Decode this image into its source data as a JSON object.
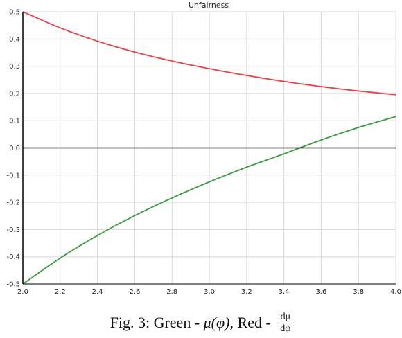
{
  "chart_data": {
    "type": "line",
    "title": "Unfairness",
    "xlim": [
      2.0,
      4.0
    ],
    "ylim": [
      -0.5,
      0.5
    ],
    "x_ticks": [
      2.0,
      2.2,
      2.4,
      2.6,
      2.8,
      3.0,
      3.2,
      3.4,
      3.6,
      3.8,
      4.0
    ],
    "x_tick_labels": [
      "2.0",
      "2.2",
      "2.4",
      "2.6",
      "2.8",
      "3.0",
      "3.2",
      "3.4",
      "3.6",
      "3.8",
      "4.0"
    ],
    "y_ticks": [
      -0.5,
      -0.4,
      -0.3,
      -0.2,
      -0.1,
      0.0,
      0.1,
      0.2,
      0.3,
      0.4,
      0.5
    ],
    "y_tick_labels": [
      "-0.5",
      "-0.4",
      "-0.3",
      "-0.2",
      "-0.1",
      "0.0",
      "0.1",
      "0.2",
      "0.3",
      "0.4",
      "0.5"
    ],
    "grid": true,
    "zero_line": true,
    "x": [
      2.0,
      2.2,
      2.4,
      2.6,
      2.8,
      3.0,
      3.2,
      3.4,
      3.6,
      3.8,
      4.0
    ],
    "series": [
      {
        "color": "#e8414b",
        "values": [
          0.5,
          0.441,
          0.392,
          0.352,
          0.319,
          0.291,
          0.266,
          0.244,
          0.225,
          0.209,
          0.195
        ]
      },
      {
        "color": "#3a9b3a",
        "values": [
          -0.5,
          -0.405,
          -0.322,
          -0.249,
          -0.184,
          -0.125,
          -0.071,
          -0.022,
          0.029,
          0.075,
          0.115
        ]
      }
    ]
  },
  "caption": {
    "prefix": "Fig. 3: Green - ",
    "green_symbol": "μ(φ)",
    "middle": ", Red - ",
    "frac_num": "dμ",
    "frac_den": "dφ"
  }
}
